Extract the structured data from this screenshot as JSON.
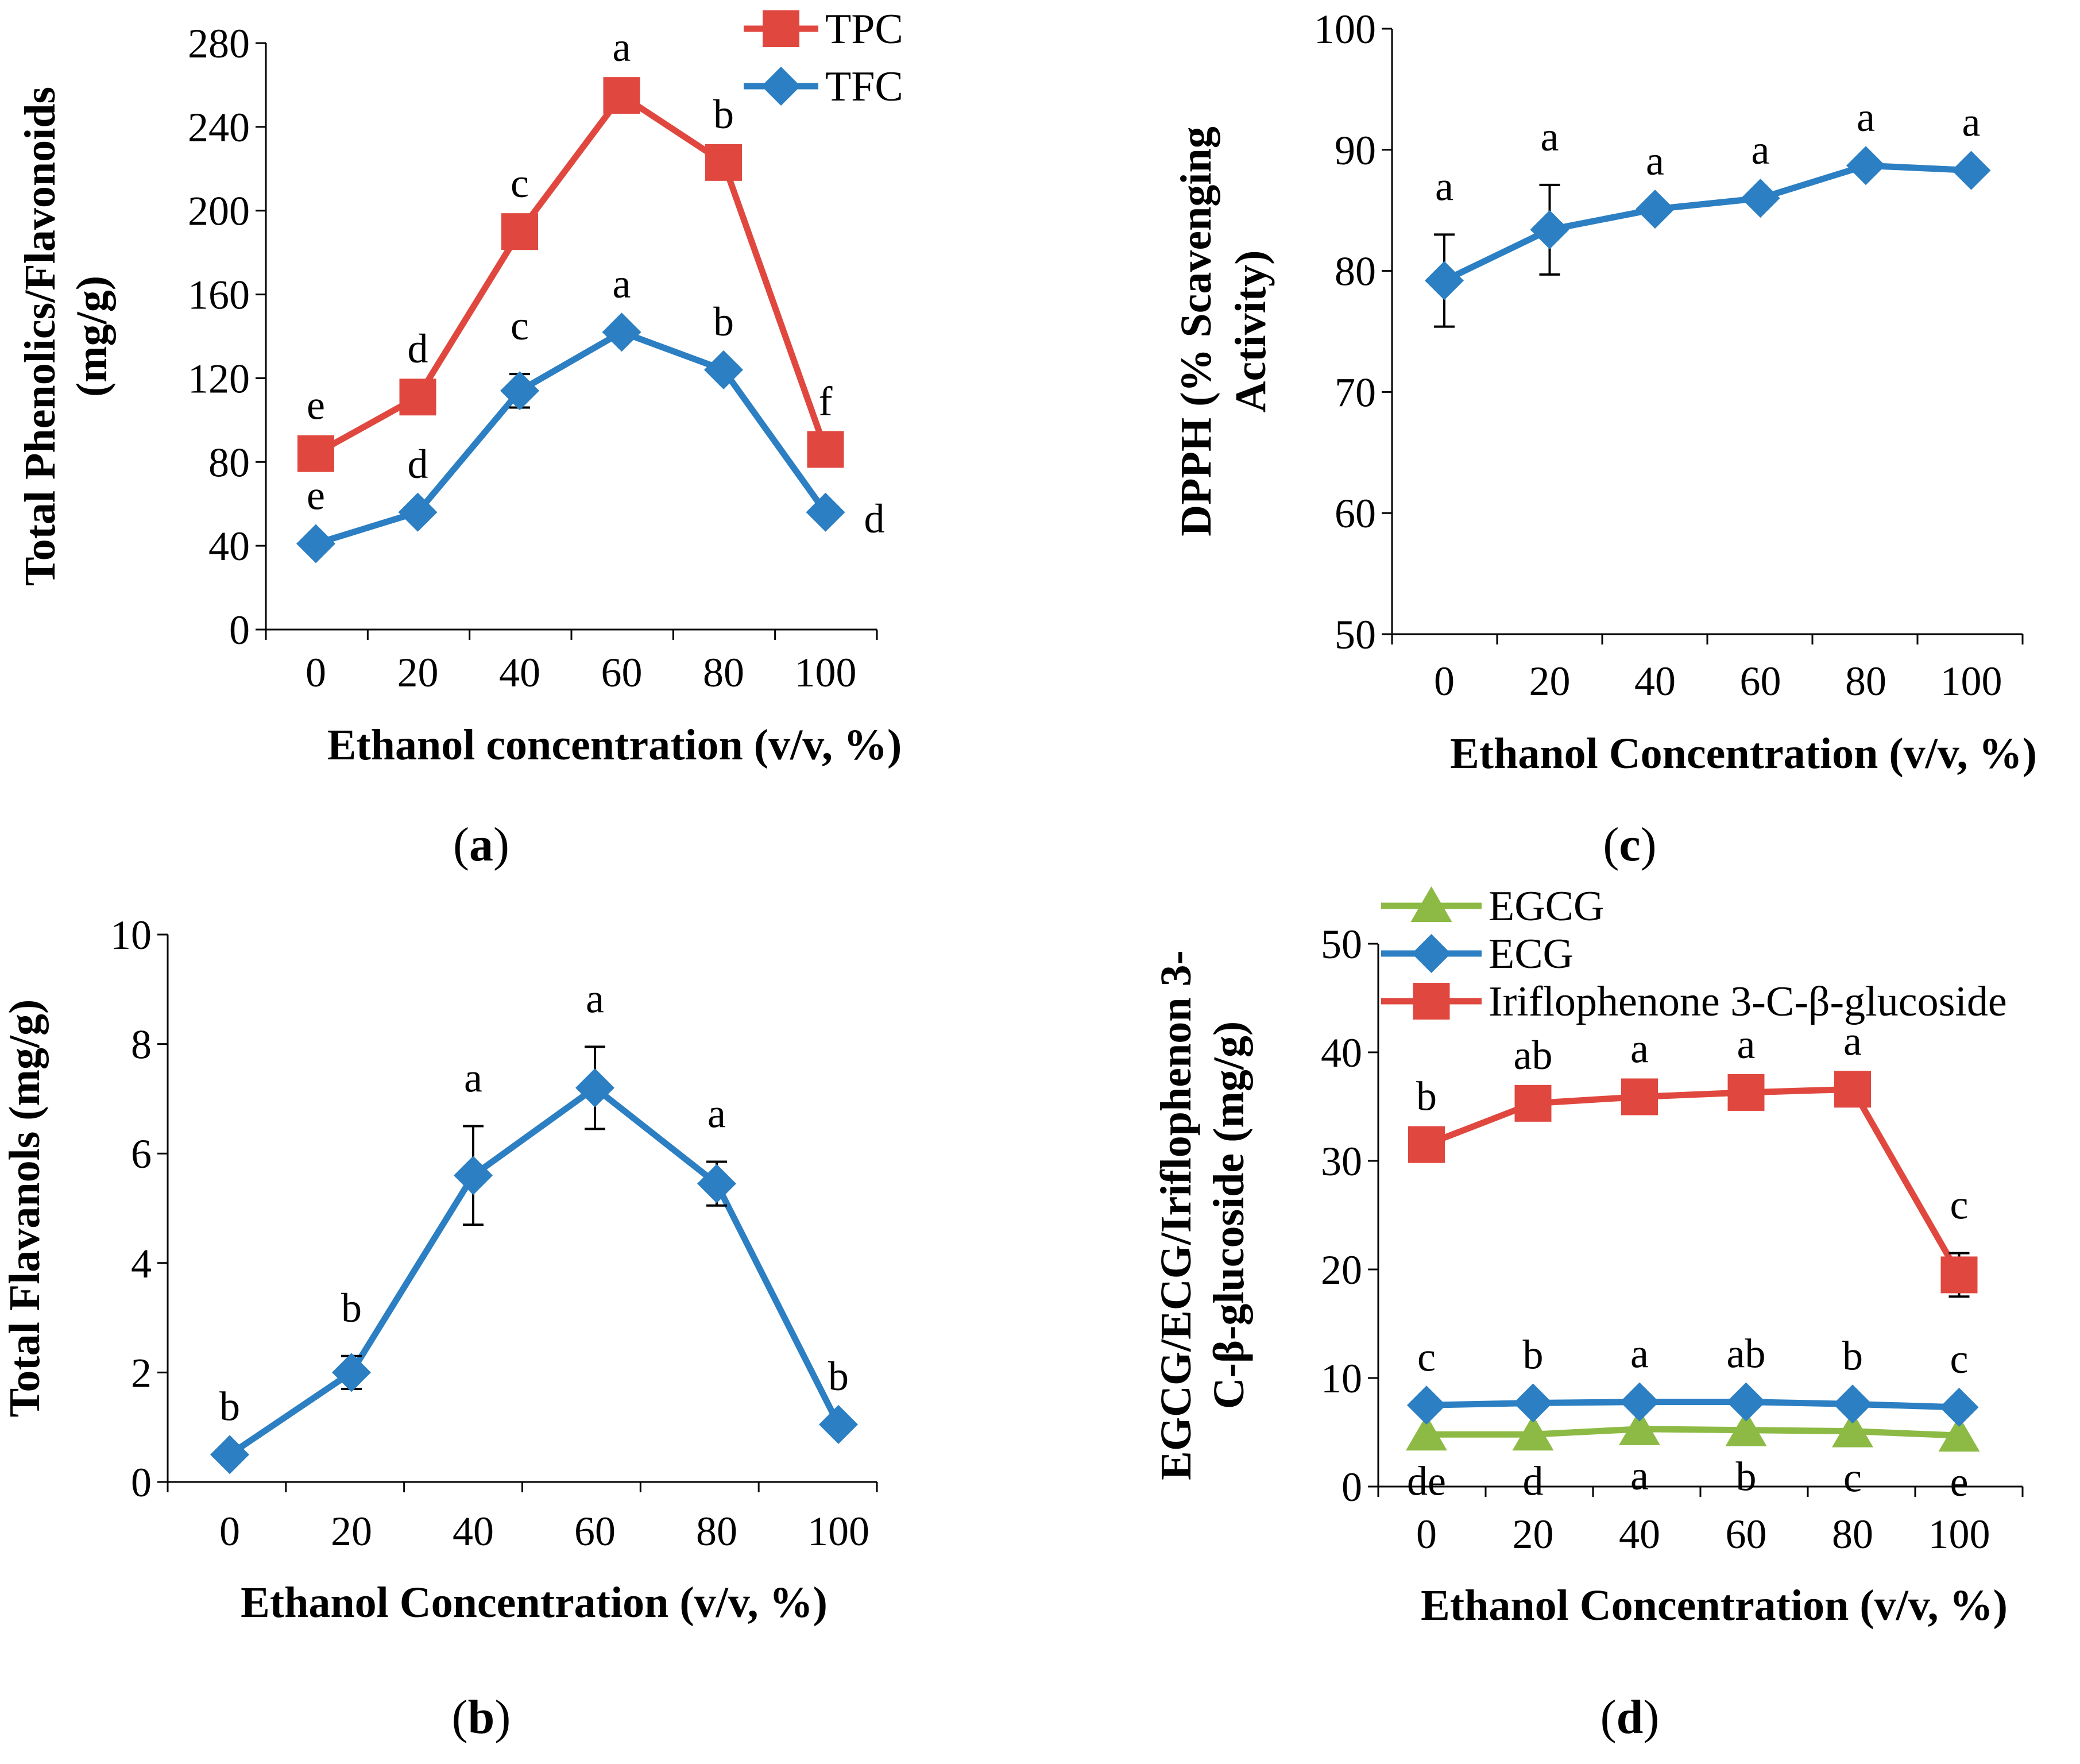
{
  "chart_data": [
    {
      "id": "a",
      "panel_label": "a",
      "type": "line",
      "xlabel": "Ethanol concentration (v/v, %)",
      "ylabel": [
        "Total Phenolics/Flavonoids",
        "(mg/g)"
      ],
      "ylim": [
        0,
        280
      ],
      "yticks": [
        0,
        40,
        80,
        120,
        160,
        200,
        240,
        280
      ],
      "x": [
        0,
        20,
        40,
        60,
        80,
        100
      ],
      "legend_position": "top-right",
      "series": [
        {
          "name": "TPC",
          "color": "#e0483f",
          "marker": "square",
          "values": [
            84,
            111,
            190,
            255,
            223,
            86
          ],
          "errors": [
            0,
            0,
            0,
            0,
            0,
            0
          ],
          "letters": [
            "e",
            "d",
            "c",
            "a",
            "b",
            "f"
          ],
          "letter_pos": [
            "above",
            "above",
            "above",
            "above",
            "above",
            "above"
          ]
        },
        {
          "name": "TFC",
          "color": "#2b7fc2",
          "marker": "diamond",
          "values": [
            41,
            56,
            114,
            142,
            124,
            56
          ],
          "errors": [
            0,
            0,
            8,
            0,
            0,
            0
          ],
          "letters": [
            "e",
            "d",
            "c",
            "a",
            "b",
            "d"
          ],
          "letter_pos": [
            "above",
            "above",
            "above",
            "above",
            "above",
            "right"
          ]
        }
      ]
    },
    {
      "id": "b",
      "panel_label": "b",
      "type": "line",
      "xlabel": "Ethanol Concentration (v/v, %)",
      "ylabel": [
        "Total Flavanols (mg/g)"
      ],
      "ylim": [
        0,
        10
      ],
      "yticks": [
        0,
        2,
        4,
        6,
        8,
        10
      ],
      "x": [
        0,
        20,
        40,
        60,
        80,
        100
      ],
      "legend_position": "none",
      "series": [
        {
          "name": "Total Flavanols",
          "color": "#2b7fc2",
          "marker": "diamond",
          "values": [
            0.5,
            2.0,
            5.6,
            7.2,
            5.45,
            1.05
          ],
          "errors": [
            0,
            0.3,
            0.9,
            0.75,
            0.4,
            0
          ],
          "letters": [
            "b",
            "b",
            "a",
            "a",
            "a",
            "b"
          ],
          "letter_pos": [
            "above",
            "above",
            "above",
            "above",
            "above",
            "above"
          ]
        }
      ]
    },
    {
      "id": "c",
      "panel_label": "c",
      "type": "line",
      "xlabel": "Ethanol Concentration (v/v, %)",
      "ylabel": [
        "DPPH (% Scavenging",
        "Activity)"
      ],
      "ylim": [
        50,
        100
      ],
      "yticks": [
        50,
        60,
        70,
        80,
        90,
        100
      ],
      "x": [
        0,
        20,
        40,
        60,
        80,
        100
      ],
      "legend_position": "none",
      "series": [
        {
          "name": "DPPH",
          "color": "#2b7fc2",
          "marker": "diamond",
          "values": [
            79.2,
            83.4,
            85.1,
            86.0,
            88.7,
            88.3
          ],
          "errors": [
            3.8,
            3.7,
            0,
            0,
            0,
            0
          ],
          "letters": [
            "a",
            "a",
            "a",
            "a",
            "a",
            "a"
          ],
          "letter_pos": [
            "above",
            "above",
            "above",
            "above",
            "above",
            "above"
          ]
        }
      ]
    },
    {
      "id": "d",
      "panel_label": "d",
      "type": "line",
      "xlabel": "Ethanol Concentration (v/v, %)",
      "ylabel": [
        "EGCG/ECG/Iriflophenon 3-",
        "C-β-glucoside (mg/g)"
      ],
      "ylim": [
        0,
        50
      ],
      "yticks": [
        0,
        10,
        20,
        30,
        40,
        50
      ],
      "x": [
        0,
        20,
        40,
        60,
        80,
        100
      ],
      "legend_position": "top-left",
      "series": [
        {
          "name": "EGCG",
          "color": "#8dba45",
          "marker": "triangle",
          "values": [
            4.8,
            4.8,
            5.3,
            5.2,
            5.1,
            4.7
          ],
          "errors": [
            0,
            0,
            0,
            0,
            0,
            0
          ],
          "letters": [
            "de",
            "d",
            "a",
            "b",
            "c",
            "e"
          ],
          "letter_pos": [
            "below",
            "below",
            "below",
            "below",
            "below",
            "below"
          ]
        },
        {
          "name": "ECG",
          "color": "#2b7fc2",
          "marker": "diamond",
          "values": [
            7.5,
            7.7,
            7.8,
            7.8,
            7.6,
            7.3
          ],
          "errors": [
            0,
            0,
            0,
            0,
            0,
            0
          ],
          "letters": [
            "c",
            "b",
            "a",
            "ab",
            "b",
            "c"
          ],
          "letter_pos": [
            "above",
            "above",
            "above",
            "above",
            "above",
            "above"
          ]
        },
        {
          "name": "Iriflophenone 3-C-β-glucoside",
          "color": "#e0483f",
          "marker": "square",
          "values": [
            31.5,
            35.3,
            35.9,
            36.3,
            36.6,
            19.5
          ],
          "errors": [
            0,
            0,
            0,
            0,
            0,
            2.0
          ],
          "letters": [
            "b",
            "ab",
            "a",
            "a",
            "a",
            "c"
          ],
          "letter_pos": [
            "above",
            "above",
            "above",
            "above",
            "above",
            "above"
          ]
        }
      ]
    }
  ]
}
